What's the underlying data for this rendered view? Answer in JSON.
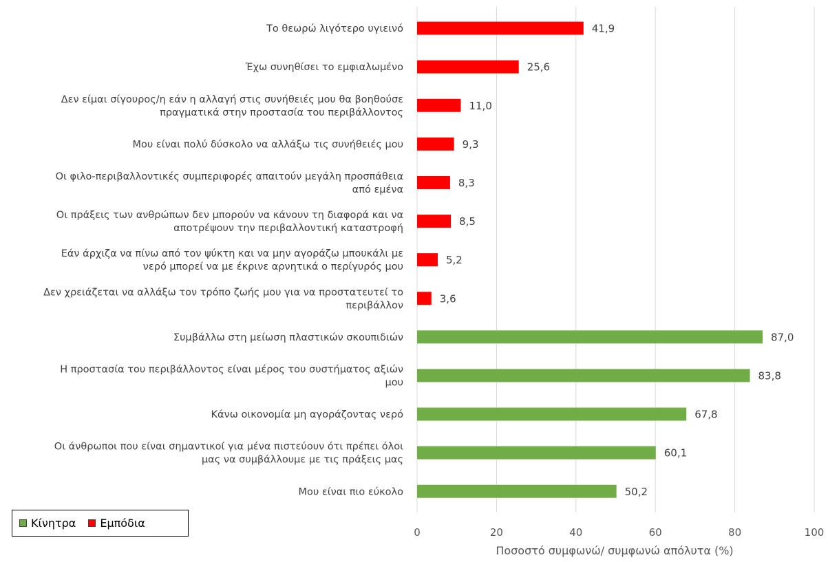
{
  "chart_data": {
    "type": "bar",
    "orientation": "horizontal",
    "categories": [
      "Το θεωρώ λιγότερο υγιεινό",
      "Έχω συνηθίσει το εμφιαλωμένο",
      "Δεν είμαι σίγουρος/η εάν η αλλαγή στις συνήθειές μου θα βοηθούσε πραγματικά στην προστασία του περιβάλλοντος",
      "Μου είναι πολύ δύσκολο να αλλάξω τις συνήθειές μου",
      "Οι φιλο-περιβαλλοντικές συμπεριφορές απαιτούν μεγάλη προσπάθεια από εμένα",
      "Οι πράξεις των ανθρώπων δεν μπορούν να κάνουν τη διαφορά και να αποτρέψουν την περιβαλλοντική καταστροφή",
      "Εάν άρχιζα να πίνω από τον ψύκτη και να μην αγοράζω μπουκάλι με νερό μπορεί να με έκρινε αρνητικά ο περίγυρός μου",
      "Δεν χρειάζεται να αλλάξω τον τρόπο ζωής μου για να προστατευτεί το περιβάλλον",
      "Συμβάλλω στη μείωση πλαστικών σκουπιδιών",
      "Η προστασία του περιβάλλοντος είναι μέρος του συστήματος αξιών μου",
      "Κάνω οικονομία μη αγοράζοντας νερό",
      "Οι άνθρωποι που είναι σημαντικοί για μένα πιστεύουν ότι πρέπει όλοι μας να συμβάλλουμε με τις πράξεις μας",
      "Μου είναι πιο εύκολο"
    ],
    "category_lines": [
      [
        "Το θεωρώ λιγότερο υγιεινό"
      ],
      [
        "Έχω συνηθίσει το εμφιαλωμένο"
      ],
      [
        "Δεν είμαι σίγουρος/η εάν η αλλαγή στις συνήθειές μου θα βοηθούσε",
        "πραγματικά στην προστασία του περιβάλλοντος"
      ],
      [
        "Μου είναι πολύ δύσκολο να αλλάξω τις συνήθειές μου"
      ],
      [
        "Οι φιλο-περιβαλλοντικές συμπεριφορές απαιτούν μεγάλη προσπάθεια",
        "από εμένα"
      ],
      [
        "Οι πράξεις των ανθρώπων δεν μπορούν να κάνουν τη διαφορά και να",
        "αποτρέψουν την περιβαλλοντική καταστροφή"
      ],
      [
        "Εάν άρχιζα να πίνω από τον ψύκτη και να μην αγοράζω μπουκάλι με",
        "νερό μπορεί να με έκρινε αρνητικά ο περίγυρός μου"
      ],
      [
        "Δεν χρειάζεται να αλλάξω τον τρόπο ζωής μου για να προστατευτεί το",
        "περιβάλλον"
      ],
      [
        "Συμβάλλω στη μείωση πλαστικών σκουπιδιών"
      ],
      [
        "Η προστασία του περιβάλλοντος είναι μέρος του συστήματος αξιών",
        "μου"
      ],
      [
        "Κάνω οικονομία μη αγοράζοντας νερό"
      ],
      [
        "Οι άνθρωποι που είναι σημαντικοί για μένα πιστεύουν ότι πρέπει όλοι",
        "μας να συμβάλλουμε με τις πράξεις μας"
      ],
      [
        "Μου είναι πιο εύκολο"
      ]
    ],
    "values": [
      41.9,
      25.6,
      11.0,
      9.3,
      8.3,
      8.5,
      5.2,
      3.6,
      87.0,
      83.8,
      67.8,
      60.1,
      50.2
    ],
    "value_labels": [
      "41,9",
      "25,6",
      "11,0",
      "9,3",
      "8,3",
      "8,5",
      "5,2",
      "3,6",
      "87,0",
      "83,8",
      "67,8",
      "60,1",
      "50,2"
    ],
    "series_index": [
      1,
      1,
      1,
      1,
      1,
      1,
      1,
      1,
      0,
      0,
      0,
      0,
      0
    ],
    "series": [
      {
        "name": "Κίνητρα",
        "color": "#70AD47"
      },
      {
        "name": "Εμπόδια",
        "color": "#FF0000"
      }
    ],
    "xlim": [
      0,
      100
    ],
    "x_ticks": [
      0,
      20,
      40,
      60,
      80,
      100
    ],
    "xlabel": "Ποσοστό συμφωνώ/ συμφωνώ απόλυτα (%)",
    "ylabel": "",
    "title": "",
    "grid": true,
    "legend_position": "bottom-left"
  },
  "legend": {
    "items": [
      {
        "label": "Κίνητρα",
        "color": "#70AD47"
      },
      {
        "label": "Εμπόδια",
        "color": "#FF0000"
      }
    ]
  }
}
